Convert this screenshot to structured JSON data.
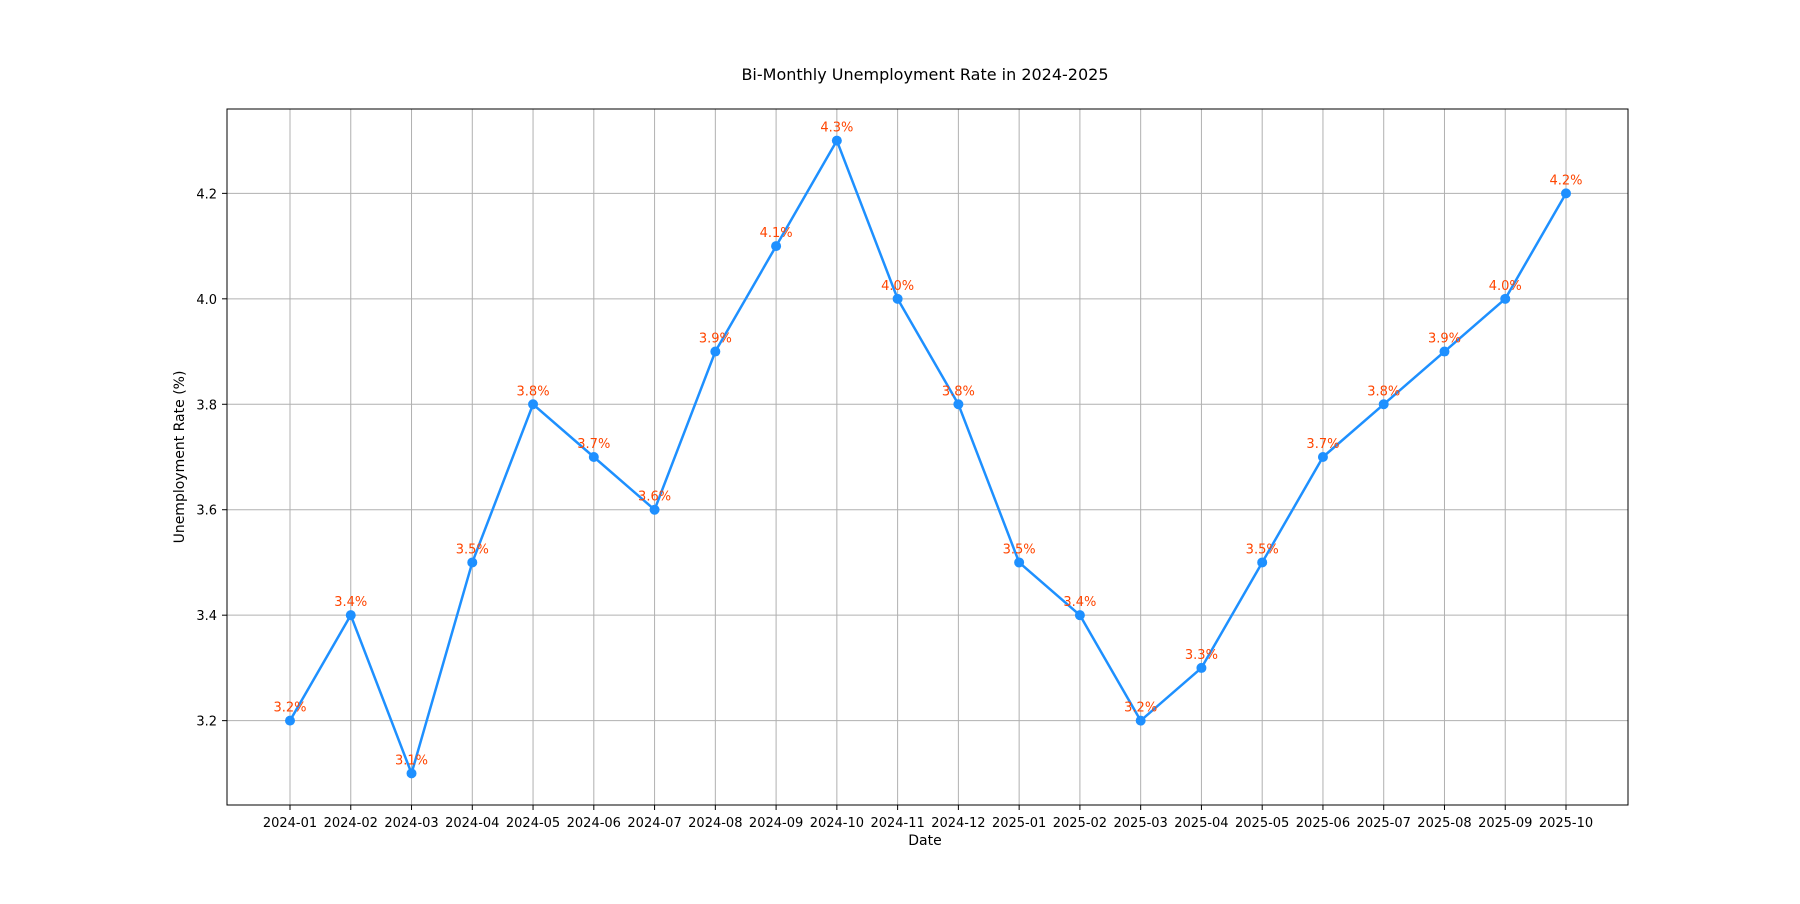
{
  "chart_data": {
    "type": "line",
    "title": "Bi-Monthly Unemployment Rate in 2024-2025",
    "xlabel": "Date",
    "ylabel": "Unemployment Rate (%)",
    "categories": [
      "2024-01",
      "2024-02",
      "2024-03",
      "2024-04",
      "2024-05",
      "2024-06",
      "2024-07",
      "2024-08",
      "2024-09",
      "2024-10",
      "2024-11",
      "2024-12",
      "2025-01",
      "2025-02",
      "2025-03",
      "2025-04",
      "2025-05",
      "2025-06",
      "2025-07",
      "2025-08",
      "2025-09",
      "2025-10"
    ],
    "values": [
      3.2,
      3.4,
      3.1,
      3.5,
      3.8,
      3.7,
      3.6,
      3.9,
      4.1,
      4.3,
      4.0,
      3.8,
      3.5,
      3.4,
      3.2,
      3.3,
      3.5,
      3.7,
      3.8,
      3.9,
      4.0,
      4.2
    ],
    "data_labels": [
      "3.2%",
      "3.4%",
      "3.1%",
      "3.5%",
      "3.8%",
      "3.7%",
      "3.6%",
      "3.9%",
      "4.1%",
      "4.3%",
      "4.0%",
      "3.8%",
      "3.5%",
      "3.4%",
      "3.2%",
      "3.3%",
      "3.5%",
      "3.7%",
      "3.8%",
      "3.9%",
      "4.0%",
      "4.2%"
    ],
    "yticks": [
      "3.2",
      "3.4",
      "3.6",
      "3.8",
      "4.0",
      "4.2"
    ],
    "ylim": [
      3.04,
      4.36
    ],
    "grid": true,
    "line_color": "#1e90ff",
    "label_color": "#ff4500"
  }
}
